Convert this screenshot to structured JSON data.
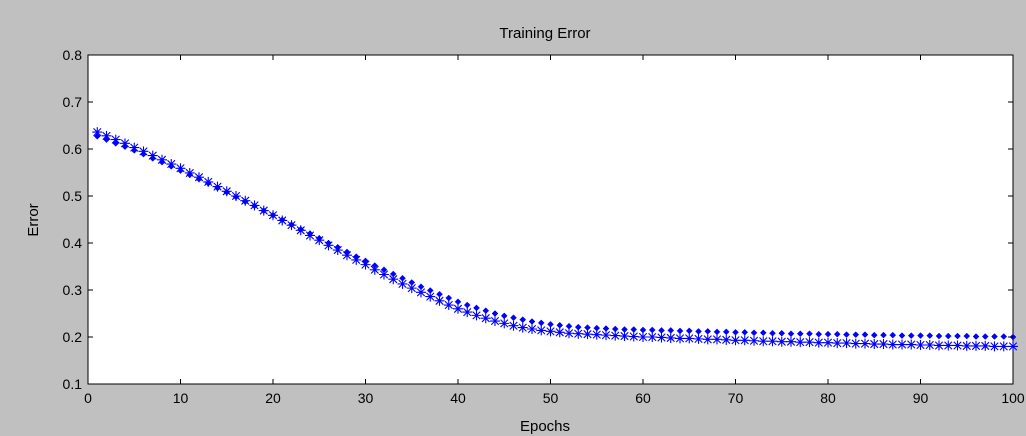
{
  "chart_data": {
    "type": "scatter",
    "title": "Training Error",
    "xlabel": "Epochs",
    "ylabel": "Error",
    "xlim": [
      0,
      100
    ],
    "ylim": [
      0.1,
      0.8
    ],
    "xticks": [
      0,
      10,
      20,
      30,
      40,
      50,
      60,
      70,
      80,
      90,
      100
    ],
    "yticks": [
      0.1,
      0.2,
      0.3,
      0.4,
      0.5,
      0.6,
      0.7,
      0.8
    ],
    "grid": false,
    "colors": {
      "series": "#0000ff",
      "background": "#c0c0c0",
      "plot_area": "#ffffff"
    },
    "series": [
      {
        "marker": "diamond-dot",
        "x": [
          1,
          2,
          3,
          4,
          5,
          6,
          7,
          8,
          9,
          10,
          11,
          12,
          13,
          14,
          15,
          16,
          17,
          18,
          19,
          20,
          21,
          22,
          23,
          24,
          25,
          26,
          27,
          28,
          29,
          30,
          31,
          32,
          33,
          34,
          35,
          36,
          37,
          38,
          39,
          40,
          41,
          42,
          43,
          44,
          45,
          46,
          47,
          48,
          49,
          50,
          51,
          52,
          53,
          54,
          55,
          56,
          57,
          58,
          59,
          60,
          61,
          62,
          63,
          64,
          65,
          66,
          67,
          68,
          69,
          70,
          71,
          72,
          73,
          74,
          75,
          76,
          77,
          78,
          79,
          80,
          81,
          82,
          83,
          84,
          85,
          86,
          87,
          88,
          89,
          90,
          91,
          92,
          93,
          94,
          95,
          96,
          97,
          98,
          99,
          100
        ],
        "y": [
          0.627,
          0.62,
          0.612,
          0.605,
          0.597,
          0.589,
          0.58,
          0.572,
          0.563,
          0.554,
          0.545,
          0.536,
          0.527,
          0.517,
          0.508,
          0.498,
          0.488,
          0.479,
          0.469,
          0.459,
          0.449,
          0.439,
          0.429,
          0.42,
          0.41,
          0.4,
          0.391,
          0.381,
          0.371,
          0.362,
          0.352,
          0.343,
          0.334,
          0.325,
          0.316,
          0.307,
          0.299,
          0.291,
          0.283,
          0.275,
          0.268,
          0.262,
          0.256,
          0.25,
          0.245,
          0.241,
          0.237,
          0.233,
          0.23,
          0.227,
          0.225,
          0.223,
          0.221,
          0.22,
          0.219,
          0.218,
          0.217,
          0.216,
          0.216,
          0.215,
          0.215,
          0.214,
          0.214,
          0.213,
          0.213,
          0.212,
          0.212,
          0.211,
          0.211,
          0.21,
          0.21,
          0.209,
          0.209,
          0.208,
          0.208,
          0.207,
          0.207,
          0.207,
          0.206,
          0.206,
          0.206,
          0.205,
          0.205,
          0.205,
          0.204,
          0.204,
          0.204,
          0.203,
          0.203,
          0.203,
          0.203,
          0.202,
          0.202,
          0.202,
          0.202,
          0.201,
          0.201,
          0.201,
          0.201,
          0.2
        ]
      },
      {
        "marker": "asterisk",
        "x": [
          1,
          2,
          3,
          4,
          5,
          6,
          7,
          8,
          9,
          10,
          11,
          12,
          13,
          14,
          15,
          16,
          17,
          18,
          19,
          20,
          21,
          22,
          23,
          24,
          25,
          26,
          27,
          28,
          29,
          30,
          31,
          32,
          33,
          34,
          35,
          36,
          37,
          38,
          39,
          40,
          41,
          42,
          43,
          44,
          45,
          46,
          47,
          48,
          49,
          50,
          51,
          52,
          53,
          54,
          55,
          56,
          57,
          58,
          59,
          60,
          61,
          62,
          63,
          64,
          65,
          66,
          67,
          68,
          69,
          70,
          71,
          72,
          73,
          74,
          75,
          76,
          77,
          78,
          79,
          80,
          81,
          82,
          83,
          84,
          85,
          86,
          87,
          88,
          89,
          90,
          91,
          92,
          93,
          94,
          95,
          96,
          97,
          98,
          99,
          100
        ],
        "y": [
          0.636,
          0.628,
          0.62,
          0.612,
          0.603,
          0.595,
          0.586,
          0.577,
          0.568,
          0.559,
          0.549,
          0.54,
          0.53,
          0.52,
          0.51,
          0.5,
          0.49,
          0.48,
          0.469,
          0.459,
          0.448,
          0.438,
          0.427,
          0.416,
          0.406,
          0.395,
          0.385,
          0.374,
          0.364,
          0.354,
          0.343,
          0.333,
          0.323,
          0.313,
          0.304,
          0.295,
          0.286,
          0.277,
          0.268,
          0.26,
          0.253,
          0.246,
          0.24,
          0.234,
          0.229,
          0.224,
          0.22,
          0.217,
          0.214,
          0.212,
          0.21,
          0.208,
          0.207,
          0.206,
          0.205,
          0.204,
          0.203,
          0.202,
          0.201,
          0.2,
          0.2,
          0.199,
          0.198,
          0.197,
          0.197,
          0.196,
          0.195,
          0.195,
          0.194,
          0.193,
          0.193,
          0.192,
          0.191,
          0.191,
          0.19,
          0.19,
          0.189,
          0.189,
          0.188,
          0.188,
          0.187,
          0.187,
          0.186,
          0.186,
          0.185,
          0.185,
          0.184,
          0.184,
          0.184,
          0.183,
          0.183,
          0.182,
          0.182,
          0.182,
          0.181,
          0.181,
          0.181,
          0.18,
          0.18,
          0.18
        ]
      }
    ]
  }
}
